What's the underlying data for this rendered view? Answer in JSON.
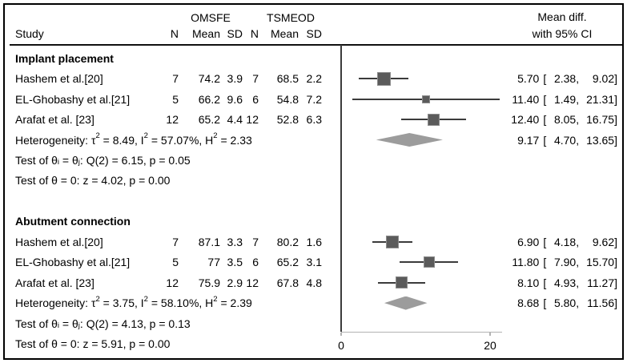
{
  "header": {
    "group1": "OMSFE",
    "group2": "TSMEOD",
    "effect_line1": "Mean diff.",
    "effect_line2": "with 95% CI",
    "study": "Study",
    "n": "N",
    "mean": "Mean",
    "sd": "SD"
  },
  "punct": {
    "open": "[",
    "comma": ",",
    "close": "]"
  },
  "groups": [
    {
      "label": "Implant placement",
      "studies": [
        {
          "name": "Hashem et al.[20]",
          "n1": "7",
          "mean1": "74.2",
          "sd1": "3.9",
          "n2": "7",
          "mean2": "68.5",
          "sd2": "2.2",
          "est": "5.70",
          "lo": "2.38",
          "hi": "9.02"
        },
        {
          "name": "EL-Ghobashy et al.[21]",
          "n1": "5",
          "mean1": "66.2",
          "sd1": "9.6",
          "n2": "6",
          "mean2": "54.8",
          "sd2": "7.2",
          "est": "11.40",
          "lo": "1.49",
          "hi": "21.31"
        },
        {
          "name": "Arafat et al. [23]",
          "n1": "12",
          "mean1": "65.2",
          "sd1": "4.4",
          "n2": "12",
          "mean2": "52.8",
          "sd2": "6.3",
          "est": "12.40",
          "lo": "8.05",
          "hi": "16.75"
        }
      ],
      "heterogeneity": {
        "t1": "Heterogeneity: τ",
        "s1": "2",
        "t2": " = 8.49, I",
        "s2": "2",
        "t3": " = 57.07%, H",
        "s3": "2",
        "t4": " = 2.33",
        "est": "9.17",
        "lo": "4.70",
        "hi": "13.65"
      },
      "test_eq": {
        "t1": "Test of θ",
        "s1": "i",
        "t2": " = θ",
        "s2": "j",
        "t3": ": Q(2) = 6.15, p = 0.05"
      },
      "test_zero": "Test of θ = 0: z = 4.02, p = 0.00"
    },
    {
      "label": "Abutment connection",
      "studies": [
        {
          "name": "Hashem et al.[20]",
          "n1": "7",
          "mean1": "87.1",
          "sd1": "3.3",
          "n2": "7",
          "mean2": "80.2",
          "sd2": "1.6",
          "est": "6.90",
          "lo": "4.18",
          "hi": "9.62"
        },
        {
          "name": "EL-Ghobashy et al.[21]",
          "n1": "5",
          "mean1": "77",
          "sd1": "3.5",
          "n2": "6",
          "mean2": "65.2",
          "sd2": "3.1",
          "est": "11.80",
          "lo": "7.90",
          "hi": "15.70"
        },
        {
          "name": "Arafat et al. [23]",
          "n1": "12",
          "mean1": "75.9",
          "sd1": "2.9",
          "n2": "12",
          "mean2": "67.8",
          "sd2": "4.8",
          "est": "8.10",
          "lo": "4.93",
          "hi": "11.27"
        }
      ],
      "heterogeneity": {
        "t1": "Heterogeneity: τ",
        "s1": "2",
        "t2": " = 3.75, I",
        "s2": "2",
        "t3": " = 58.10%, H",
        "s3": "2",
        "t4": " = 2.39",
        "est": "8.68",
        "lo": "5.80",
        "hi": "11.56"
      },
      "test_eq": {
        "t1": "Test of θ",
        "s1": "i",
        "t2": " = θ",
        "s2": "j",
        "t3": ": Q(2) = 4.13, p = 0.13"
      },
      "test_zero": "Test of θ = 0: z = 5.91, p = 0.00"
    }
  ],
  "chart_data": {
    "type": "forest",
    "title": "Mean diff. with 95% CI",
    "x_axis": {
      "min": 0,
      "max": 21.6,
      "ticks": [
        0,
        20
      ],
      "tick_labels": [
        "0",
        "20"
      ],
      "zero_line": 0
    },
    "colors": {
      "square": "#5b5b5b",
      "square_border": "#8c8c8c",
      "ci_line": "#3b3b3b",
      "diamond": "#9c9c9c",
      "axis": "#b2b2b2",
      "zero_line": "#3b3b3b"
    },
    "groups": [
      {
        "name": "Implant placement",
        "studies": [
          {
            "study": "Hashem et al.[20]",
            "est": 5.7,
            "lo": 2.38,
            "hi": 9.02,
            "marker_size": 17,
            "row": 1
          },
          {
            "study": "EL-Ghobashy et al.[21]",
            "est": 11.4,
            "lo": 1.49,
            "hi": 21.31,
            "marker_size": 10,
            "row": 2
          },
          {
            "study": "Arafat et al. [23]",
            "est": 12.4,
            "lo": 8.05,
            "hi": 16.75,
            "marker_size": 15,
            "row": 3
          }
        ],
        "overall": {
          "est": 9.17,
          "lo": 4.7,
          "hi": 13.65,
          "row": 4
        }
      },
      {
        "name": "Abutment connection",
        "studies": [
          {
            "study": "Hashem et al.[20]",
            "est": 6.9,
            "lo": 4.18,
            "hi": 9.62,
            "marker_size": 16,
            "row": 9
          },
          {
            "study": "EL-Ghobashy et al.[21]",
            "est": 11.8,
            "lo": 7.9,
            "hi": 15.7,
            "marker_size": 14,
            "row": 10
          },
          {
            "study": "Arafat et al. [23]",
            "est": 8.1,
            "lo": 4.93,
            "hi": 11.27,
            "marker_size": 15,
            "row": 11
          }
        ],
        "overall": {
          "est": 8.68,
          "lo": 5.8,
          "hi": 11.56,
          "row": 12
        }
      }
    ]
  }
}
